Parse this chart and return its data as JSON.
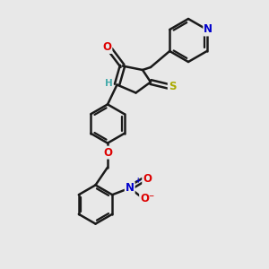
{
  "bg_color": "#e8e8e8",
  "bond_color": "#1a1a1a",
  "bond_width": 1.8,
  "atom_colors": {
    "O": "#dd0000",
    "N": "#0000cc",
    "S": "#aaaa00",
    "H": "#44aaaa",
    "C": "#1a1a1a"
  },
  "font_size": 8.5
}
